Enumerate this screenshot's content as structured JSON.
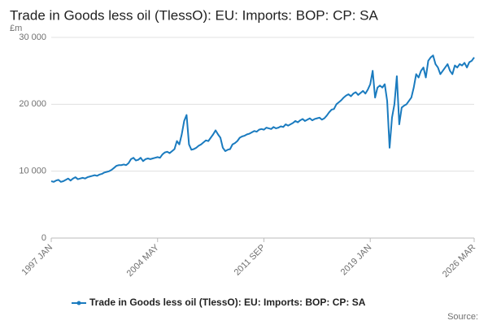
{
  "chart_data": {
    "type": "line",
    "title": "Trade in Goods less oil (TlessO): EU: Imports: BOP: CP: SA",
    "y_label": "£m",
    "source": "Source:",
    "categories": [
      "1997 JAN",
      null,
      null,
      null,
      null,
      null,
      null,
      null,
      null,
      null,
      null,
      null,
      null,
      null,
      null,
      null,
      null,
      null,
      null,
      null,
      null,
      null,
      null,
      null,
      null,
      null,
      null,
      null,
      null,
      null,
      null,
      null,
      null,
      null,
      null,
      null,
      null,
      null,
      null,
      null,
      null,
      null,
      null,
      null,
      "2004 MAY",
      null,
      null,
      null,
      null,
      null,
      null,
      null,
      null,
      null,
      null,
      null,
      null,
      null,
      null,
      null,
      null,
      null,
      null,
      null,
      null,
      null,
      null,
      null,
      null,
      null,
      null,
      null,
      null,
      null,
      null,
      null,
      null,
      null,
      null,
      null,
      null,
      null,
      null,
      null,
      null,
      null,
      null,
      null,
      "2011 SEP",
      null,
      null,
      null,
      null,
      null,
      null,
      null,
      null,
      null,
      null,
      null,
      null,
      null,
      null,
      null,
      null,
      null,
      null,
      null,
      null,
      null,
      null,
      null,
      null,
      null,
      null,
      null,
      null,
      null,
      null,
      null,
      null,
      null,
      null,
      null,
      null,
      null,
      null,
      null,
      null,
      null,
      null,
      null,
      "2019 JAN",
      null,
      null,
      null,
      null,
      null,
      null,
      null,
      null,
      null,
      null,
      null,
      null,
      null,
      null,
      null,
      null,
      null,
      null,
      null,
      null,
      null,
      null,
      null,
      null,
      null,
      null,
      null,
      null,
      null,
      null,
      null,
      null,
      null,
      null,
      null,
      null,
      null,
      null,
      null,
      null,
      null,
      null,
      "2026 MAR"
    ],
    "series": [
      {
        "name": "Trade in Goods less oil (TlessO): EU: Imports: BOP: CP: SA",
        "color": "#1a7bbf",
        "values": [
          8500,
          8400,
          8600,
          8700,
          8400,
          8500,
          8700,
          8900,
          8600,
          8900,
          9100,
          8800,
          8900,
          9000,
          8900,
          9100,
          9200,
          9300,
          9400,
          9300,
          9500,
          9600,
          9800,
          9900,
          10000,
          10200,
          10500,
          10800,
          10900,
          10900,
          11000,
          10900,
          11200,
          11800,
          12000,
          11600,
          11700,
          12000,
          11500,
          11800,
          11900,
          11800,
          11900,
          12000,
          12100,
          12000,
          12500,
          12800,
          12900,
          12700,
          13000,
          13300,
          14500,
          14000,
          15500,
          17500,
          18400,
          14000,
          13200,
          13300,
          13500,
          13800,
          14000,
          14300,
          14600,
          14500,
          15000,
          15500,
          16100,
          15500,
          15000,
          13500,
          13000,
          13200,
          13300,
          14000,
          14200,
          14500,
          15000,
          15200,
          15300,
          15500,
          15600,
          15800,
          16000,
          15900,
          16200,
          16300,
          16200,
          16500,
          16400,
          16300,
          16600,
          16400,
          16500,
          16700,
          16600,
          17000,
          16800,
          17000,
          17200,
          17500,
          17300,
          17600,
          17800,
          17500,
          17700,
          17900,
          17600,
          17800,
          17900,
          18000,
          17700,
          17900,
          18300,
          18800,
          19200,
          19300,
          20000,
          20300,
          20600,
          21000,
          21300,
          21500,
          21200,
          21600,
          21800,
          21400,
          21700,
          22000,
          21600,
          22200,
          23000,
          25000,
          21000,
          22500,
          22800,
          22500,
          23000,
          20500,
          13500,
          18000,
          20000,
          24200,
          17000,
          19500,
          19800,
          20000,
          20500,
          21000,
          22500,
          24500,
          24000,
          25000,
          25500,
          24000,
          26500,
          27000,
          27300,
          26000,
          25500,
          24500,
          25000,
          25500,
          26000,
          25000,
          24500,
          25800,
          25500,
          26000,
          25800,
          26200,
          25500,
          26300,
          26500,
          27000
        ]
      }
    ],
    "ylim": [
      0,
      30000
    ],
    "yticks": [
      0,
      {
        "value": 10000,
        "label": "10 000"
      },
      {
        "value": 20000,
        "label": "20 000"
      },
      {
        "value": 30000,
        "label": "30 000"
      }
    ],
    "grid": true
  }
}
